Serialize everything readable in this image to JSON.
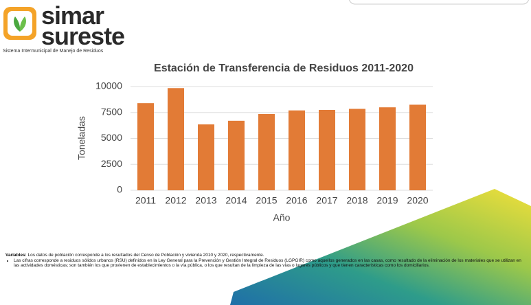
{
  "header": {
    "logo_line1": "simar",
    "logo_line2": "sureste",
    "tagline": "Sistema Intermunicipal de Manejo de Residuos"
  },
  "chart_data": {
    "type": "bar",
    "title": "Estación de Transferencia de Residuos 2011-2020",
    "x_label": "Año",
    "y_label": "Toneladas",
    "categories": [
      "2011",
      "2012",
      "2013",
      "2014",
      "2015",
      "2016",
      "2017",
      "2018",
      "2019",
      "2020"
    ],
    "values": [
      8400,
      9850,
      6350,
      6700,
      7350,
      7700,
      7750,
      7850,
      8000,
      8250
    ],
    "color": "#e27b36",
    "ylim": [
      0,
      10000
    ],
    "yticks": [
      0,
      2500,
      5000,
      7500,
      10000
    ],
    "grid": true
  },
  "notes": {
    "variables_label": "Variables:",
    "variables_text": "Los datos de población corresponde a los resultados del Censo de Población y vivienda 2010 y 2020, respectivamente.",
    "bullet": "Las cifras corresponde a residuos sólidos urbanos (RSU) definidos en la Ley General para la Prevención y Gestión Integral de Residuos (LGPGIR) como aquellos generados en las casas, como resultado de la eliminación de los materiales que se utilizan en las actividades domésticas; son también los que provienen de establecimientos o la vía pública, o los que resultan de la limpieza de las vías o lugares públicos y que tienen características como los domiciliarios."
  }
}
